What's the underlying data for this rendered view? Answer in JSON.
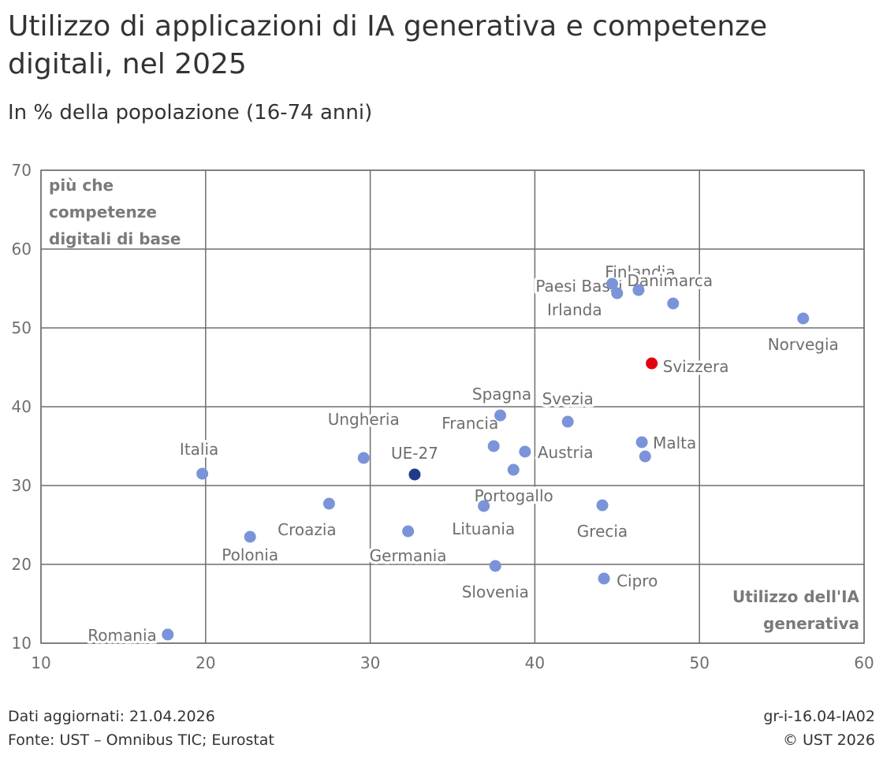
{
  "title": "Utilizzo di applicazioni di IA generativa e competenze digitali, nel 2025",
  "subtitle": "In % della popolazione (16-74 anni)",
  "footer": {
    "updated": "Dati aggiornati: 21.04.2026",
    "source": "Fonte: UST – Omnibus TIC; Eurostat",
    "code": "gr-i-16.04-IA02",
    "copyright": "© UST 2026"
  },
  "colors": {
    "point": "#7b93d8",
    "eu": "#1f3c8a",
    "switzerland": "#e3000f",
    "grid": "#6e6e6e",
    "label": "#6e6e6e",
    "quadrant_label": "#7a7a7a"
  },
  "chart_data": {
    "type": "scatter",
    "xlabel": "Utilizzo dell'IA generativa",
    "ylabel": "più che competenze digitali di base",
    "xlim": [
      10,
      60
    ],
    "ylim": [
      10,
      70
    ],
    "xticks": [
      10,
      20,
      30,
      40,
      50,
      60
    ],
    "yticks": [
      10,
      20,
      30,
      40,
      50,
      60,
      70
    ],
    "grid": true,
    "points": [
      {
        "label": "Romania",
        "x": 17.7,
        "y": 11.1,
        "group": "country"
      },
      {
        "label": "Italia",
        "x": 19.8,
        "y": 31.5,
        "group": "country"
      },
      {
        "label": "Polonia",
        "x": 22.7,
        "y": 23.5,
        "group": "country"
      },
      {
        "label": "Croazia",
        "x": 27.5,
        "y": 27.7,
        "group": "country"
      },
      {
        "label": "Ungheria",
        "x": 29.6,
        "y": 33.5,
        "group": "country"
      },
      {
        "label": "Germania",
        "x": 32.3,
        "y": 24.2,
        "group": "country"
      },
      {
        "label": "UE-27",
        "x": 32.7,
        "y": 31.4,
        "group": "eu"
      },
      {
        "label": "Portogallo",
        "x": 36.9,
        "y": 27.4,
        "group": "country"
      },
      {
        "label": "Francia",
        "x": 37.5,
        "y": 35.0,
        "group": "country"
      },
      {
        "label": "Slovenia",
        "x": 37.6,
        "y": 19.8,
        "group": "country"
      },
      {
        "label": "Spagna",
        "x": 37.9,
        "y": 38.9,
        "group": "country"
      },
      {
        "label": "Lituania",
        "x": 38.7,
        "y": 32.0,
        "group": "country"
      },
      {
        "label": "Austria",
        "x": 39.4,
        "y": 34.3,
        "group": "country"
      },
      {
        "label": "Svezia",
        "x": 42.0,
        "y": 38.1,
        "group": "country"
      },
      {
        "label": "Grecia",
        "x": 44.1,
        "y": 27.5,
        "group": "country"
      },
      {
        "label": "Cipro",
        "x": 44.2,
        "y": 18.2,
        "group": "country"
      },
      {
        "label": "Paesi Bassi",
        "x": 44.7,
        "y": 55.6,
        "group": "country"
      },
      {
        "label": "Irlanda",
        "x": 45.0,
        "y": 54.4,
        "group": "country"
      },
      {
        "label": "Finlandia",
        "x": 46.3,
        "y": 54.8,
        "group": "country"
      },
      {
        "label": "Malta",
        "x": 46.5,
        "y": 35.5,
        "group": "country"
      },
      {
        "label": "",
        "x": 46.7,
        "y": 33.7,
        "group": "country"
      },
      {
        "label": "Svizzera",
        "x": 47.1,
        "y": 45.5,
        "group": "switzerland"
      },
      {
        "label": "Danimarca",
        "x": 48.4,
        "y": 53.1,
        "group": "country"
      },
      {
        "label": "Norvegia",
        "x": 56.3,
        "y": 51.2,
        "group": "country"
      }
    ]
  }
}
